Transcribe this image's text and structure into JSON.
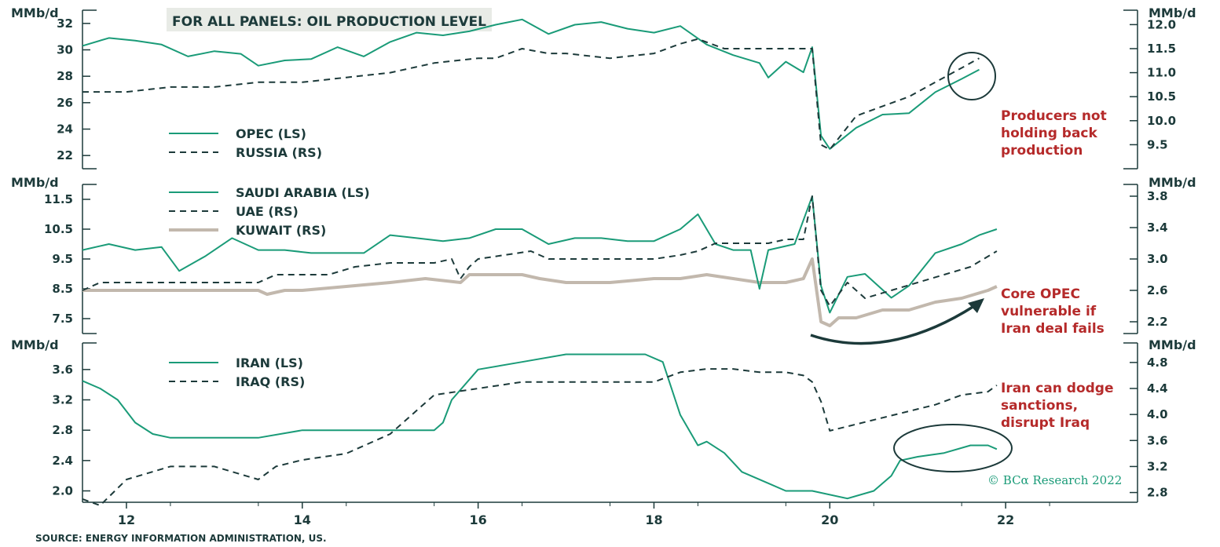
{
  "header_banner": "FOR ALL PANELS: OIL PRODUCTION LEVEL",
  "source": "SOURCE: ENERGY INFORMATION ADMINISTRATION, US.",
  "copyright": "© BCα Research 2022",
  "colors": {
    "green": "#1a9b78",
    "dark": "#1c3a3a",
    "beige": "#c2b8ad",
    "red": "#b52a2a",
    "banner_bg": "#e8ebe6"
  },
  "x_axis": {
    "labels": [
      "12",
      "14",
      "16",
      "18",
      "20",
      "22"
    ],
    "ticks": [
      12,
      14,
      16,
      18,
      20,
      22
    ],
    "range": [
      11.5,
      23.5
    ]
  },
  "chart_data": [
    {
      "type": "line",
      "panel": "top",
      "y_left": {
        "unit": "MMb/d",
        "range": [
          21,
          33
        ],
        "ticks": [
          22,
          24,
          26,
          28,
          30,
          32
        ],
        "tick_labels": [
          "22",
          "24",
          "26",
          "28",
          "30",
          "32"
        ]
      },
      "y_right": {
        "unit": "MMb/d",
        "range": [
          9.0,
          12.3
        ],
        "ticks": [
          9.5,
          10.0,
          10.5,
          11.0,
          11.5,
          12.0
        ],
        "tick_labels": [
          "9.5",
          "10.0",
          "10.5",
          "11.0",
          "11.5",
          "12.0"
        ]
      },
      "legend": [
        "OPEC (LS)",
        "RUSSIA (RS)"
      ],
      "annotation": [
        "Producers not",
        "holding back",
        "production"
      ],
      "series": [
        {
          "name": "OPEC (LS)",
          "axis": "left",
          "style": "solid",
          "color": "#1a9b78",
          "x": [
            11.5,
            11.8,
            12.1,
            12.4,
            12.7,
            13.0,
            13.3,
            13.5,
            13.8,
            14.1,
            14.4,
            14.7,
            15.0,
            15.3,
            15.6,
            15.9,
            16.2,
            16.5,
            16.8,
            17.1,
            17.4,
            17.7,
            18.0,
            18.3,
            18.6,
            18.9,
            19.2,
            19.3,
            19.5,
            19.7,
            19.8,
            19.9,
            20.0,
            20.3,
            20.6,
            20.9,
            21.2,
            21.5,
            21.7
          ],
          "y": [
            30.3,
            30.9,
            30.7,
            30.4,
            29.5,
            29.9,
            29.7,
            28.8,
            29.2,
            29.3,
            30.2,
            29.5,
            30.6,
            31.3,
            31.1,
            31.4,
            31.9,
            32.3,
            31.2,
            31.9,
            32.1,
            31.6,
            31.3,
            31.8,
            30.4,
            29.6,
            29.0,
            27.9,
            29.1,
            28.3,
            30.2,
            23.5,
            22.5,
            24.1,
            25.1,
            25.2,
            26.8,
            27.8,
            28.5
          ]
        },
        {
          "name": "RUSSIA (RS)",
          "axis": "right",
          "style": "dashed",
          "color": "#1c3a3a",
          "x": [
            11.5,
            12.0,
            12.5,
            13.0,
            13.5,
            14.0,
            14.5,
            15.0,
            15.5,
            16.0,
            16.2,
            16.5,
            16.8,
            17.0,
            17.5,
            18.0,
            18.3,
            18.5,
            18.8,
            19.0,
            19.3,
            19.6,
            19.8,
            19.9,
            20.0,
            20.3,
            20.6,
            20.9,
            21.2,
            21.5,
            21.7
          ],
          "y": [
            10.6,
            10.6,
            10.7,
            10.7,
            10.8,
            10.8,
            10.9,
            11.0,
            11.2,
            11.3,
            11.3,
            11.5,
            11.4,
            11.4,
            11.3,
            11.4,
            11.6,
            11.7,
            11.5,
            11.5,
            11.5,
            11.5,
            11.5,
            9.5,
            9.4,
            10.1,
            10.3,
            10.5,
            10.8,
            11.1,
            11.3
          ]
        }
      ]
    },
    {
      "type": "line",
      "panel": "middle",
      "y_left": {
        "unit": "MMb/d",
        "range": [
          7.0,
          12.0
        ],
        "ticks": [
          7.5,
          8.5,
          9.5,
          10.5,
          11.5
        ],
        "tick_labels": [
          "7.5",
          "8.5",
          "9.5",
          "10.5",
          "11.5"
        ]
      },
      "y_right": {
        "unit": "MMb/d",
        "range": [
          2.05,
          3.95
        ],
        "ticks": [
          2.2,
          2.6,
          3.0,
          3.4,
          3.8
        ],
        "tick_labels": [
          "2.2",
          "2.6",
          "3.0",
          "3.4",
          "3.8"
        ]
      },
      "legend": [
        "SAUDI ARABIA (LS)",
        "UAE (RS)",
        "KUWAIT (RS)"
      ],
      "annotation": [
        "Core OPEC",
        "vulnerable if",
        "Iran deal fails"
      ],
      "series": [
        {
          "name": "SAUDI ARABIA (LS)",
          "axis": "left",
          "style": "solid",
          "color": "#1a9b78",
          "x": [
            11.5,
            11.8,
            12.1,
            12.4,
            12.6,
            12.9,
            13.2,
            13.5,
            13.8,
            14.1,
            14.4,
            14.7,
            15.0,
            15.3,
            15.6,
            15.9,
            16.2,
            16.5,
            16.8,
            17.1,
            17.4,
            17.7,
            18.0,
            18.3,
            18.5,
            18.7,
            18.9,
            19.1,
            19.2,
            19.3,
            19.6,
            19.8,
            19.9,
            20.0,
            20.2,
            20.4,
            20.7,
            20.9,
            21.2,
            21.5,
            21.7,
            21.9
          ],
          "y": [
            9.8,
            10.0,
            9.8,
            9.9,
            9.1,
            9.6,
            10.2,
            9.8,
            9.8,
            9.7,
            9.7,
            9.7,
            10.3,
            10.2,
            10.1,
            10.2,
            10.5,
            10.5,
            10.0,
            10.2,
            10.2,
            10.1,
            10.1,
            10.5,
            11.0,
            10.0,
            9.8,
            9.8,
            8.5,
            9.8,
            10.0,
            11.6,
            8.6,
            7.7,
            8.9,
            9.0,
            8.2,
            8.6,
            9.7,
            10.0,
            10.3,
            10.5
          ]
        },
        {
          "name": "UAE (RS)",
          "axis": "right",
          "style": "dashed",
          "color": "#1c3a3a",
          "x": [
            11.5,
            11.7,
            12.0,
            12.5,
            13.0,
            13.5,
            13.7,
            14.0,
            14.3,
            14.6,
            15.0,
            15.5,
            15.7,
            15.8,
            15.9,
            16.0,
            16.3,
            16.6,
            16.8,
            17.2,
            17.6,
            18.0,
            18.3,
            18.5,
            18.7,
            19.0,
            19.3,
            19.5,
            19.7,
            19.8,
            19.9,
            20.0,
            20.2,
            20.4,
            20.7,
            21.0,
            21.3,
            21.6,
            21.9
          ],
          "y": [
            2.6,
            2.7,
            2.7,
            2.7,
            2.7,
            2.7,
            2.8,
            2.8,
            2.8,
            2.9,
            2.95,
            2.95,
            3.0,
            2.75,
            2.9,
            3.0,
            3.05,
            3.1,
            3.0,
            3.0,
            3.0,
            3.0,
            3.05,
            3.1,
            3.2,
            3.2,
            3.2,
            3.25,
            3.25,
            3.8,
            2.6,
            2.4,
            2.7,
            2.5,
            2.6,
            2.7,
            2.8,
            2.9,
            3.1
          ]
        },
        {
          "name": "KUWAIT (RS)",
          "axis": "right",
          "style": "solid",
          "color": "#c2b8ad",
          "x": [
            11.5,
            12.0,
            12.5,
            13.0,
            13.5,
            13.6,
            13.8,
            14.0,
            14.5,
            15.0,
            15.4,
            15.8,
            15.9,
            16.0,
            16.3,
            16.5,
            16.7,
            17.0,
            17.5,
            18.0,
            18.3,
            18.6,
            18.9,
            19.2,
            19.5,
            19.7,
            19.8,
            19.9,
            20.0,
            20.1,
            20.3,
            20.6,
            20.9,
            21.2,
            21.5,
            21.8,
            21.9
          ],
          "y": [
            2.6,
            2.6,
            2.6,
            2.6,
            2.6,
            2.55,
            2.6,
            2.6,
            2.65,
            2.7,
            2.75,
            2.7,
            2.8,
            2.8,
            2.8,
            2.8,
            2.75,
            2.7,
            2.7,
            2.75,
            2.75,
            2.8,
            2.75,
            2.7,
            2.7,
            2.75,
            3.0,
            2.2,
            2.15,
            2.25,
            2.25,
            2.35,
            2.35,
            2.45,
            2.5,
            2.6,
            2.65
          ]
        }
      ]
    },
    {
      "type": "line",
      "panel": "bottom",
      "y_left": {
        "unit": "MMb/d",
        "range": [
          1.85,
          3.95
        ],
        "ticks": [
          2.0,
          2.4,
          2.8,
          3.2,
          3.6
        ],
        "tick_labels": [
          "2.0",
          "2.4",
          "2.8",
          "3.2",
          "3.6"
        ]
      },
      "y_right": {
        "unit": "MMb/d",
        "range": [
          2.65,
          5.1
        ],
        "ticks": [
          2.8,
          3.2,
          3.6,
          4.0,
          4.4,
          4.8
        ],
        "tick_labels": [
          "2.8",
          "3.2",
          "3.6",
          "4.0",
          "4.4",
          "4.8"
        ]
      },
      "legend": [
        "IRAN (LS)",
        "IRAQ (RS)"
      ],
      "annotation": [
        "Iran can dodge",
        "sanctions,",
        "disrupt Iraq"
      ],
      "series": [
        {
          "name": "IRAN (LS)",
          "axis": "left",
          "style": "solid",
          "color": "#1a9b78",
          "x": [
            11.5,
            11.7,
            11.9,
            12.1,
            12.3,
            12.5,
            13.0,
            13.5,
            14.0,
            14.5,
            15.0,
            15.5,
            15.6,
            15.7,
            16.0,
            16.5,
            17.0,
            17.5,
            17.9,
            18.1,
            18.3,
            18.5,
            18.6,
            18.8,
            19.0,
            19.3,
            19.5,
            19.8,
            20.2,
            20.5,
            20.7,
            20.8,
            21.0,
            21.3,
            21.6,
            21.8,
            21.9
          ],
          "y": [
            3.45,
            3.35,
            3.2,
            2.9,
            2.75,
            2.7,
            2.7,
            2.7,
            2.8,
            2.8,
            2.8,
            2.8,
            2.9,
            3.2,
            3.6,
            3.7,
            3.8,
            3.8,
            3.8,
            3.7,
            3.0,
            2.6,
            2.65,
            2.5,
            2.25,
            2.1,
            2.0,
            2.0,
            1.9,
            2.0,
            2.2,
            2.4,
            2.45,
            2.5,
            2.6,
            2.6,
            2.55
          ]
        },
        {
          "name": "IRAQ (RS)",
          "axis": "right",
          "style": "dashed",
          "color": "#1c3a3a",
          "x": [
            11.5,
            11.7,
            12.0,
            12.5,
            13.0,
            13.5,
            13.7,
            14.0,
            14.5,
            15.0,
            15.5,
            16.0,
            16.5,
            17.0,
            17.5,
            18.0,
            18.3,
            18.6,
            18.9,
            19.2,
            19.5,
            19.7,
            19.8,
            19.9,
            20.0,
            20.3,
            20.6,
            20.9,
            21.2,
            21.5,
            21.8,
            21.9
          ],
          "y": [
            2.7,
            2.6,
            3.0,
            3.2,
            3.2,
            3.0,
            3.2,
            3.3,
            3.4,
            3.7,
            4.3,
            4.4,
            4.5,
            4.5,
            4.5,
            4.5,
            4.65,
            4.7,
            4.7,
            4.65,
            4.65,
            4.6,
            4.5,
            4.2,
            3.75,
            3.85,
            3.95,
            4.05,
            4.15,
            4.3,
            4.35,
            4.45
          ]
        }
      ]
    }
  ]
}
